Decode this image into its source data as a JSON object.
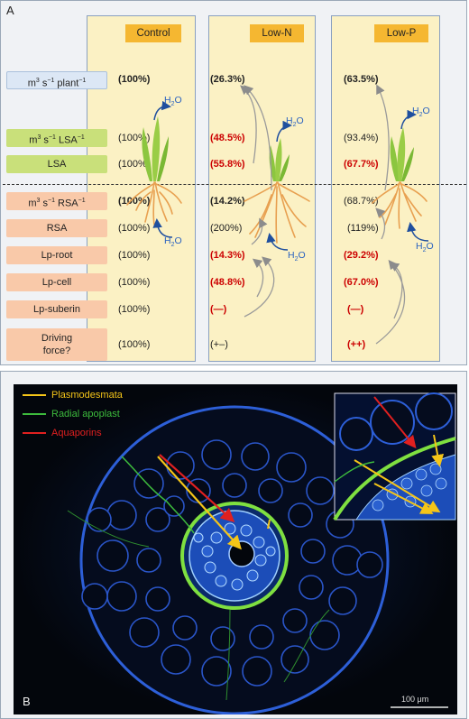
{
  "panel_a": {
    "label": "A",
    "columns": [
      {
        "title": "Control",
        "values": [
          "(100%)",
          "(100%)",
          "(100%)",
          "(100%)",
          "(100%)",
          "(100%)",
          "(100%)",
          "(100%)",
          "(100%)"
        ]
      },
      {
        "title": "Low-N",
        "values": [
          "(26.3%)",
          "(48.5%)",
          "(55.8%)",
          "(14.2%)",
          "(200%)",
          "(14.3%)",
          "(48.8%)",
          "(—)",
          "(+–)"
        ]
      },
      {
        "title": "Low-P",
        "values": [
          "(63.5%)",
          "(93.4%)",
          "(67.7%)",
          "(68.7%)",
          "(119%)",
          "(29.2%)",
          "(67.0%)",
          "(—)",
          "(++)"
        ]
      }
    ],
    "rows": [
      {
        "label_pre": "m",
        "label_sup1": "3",
        "label_mid": " s",
        "label_sup2": "−1",
        "label_post": " plant",
        "label_sup3": "−1"
      },
      {
        "label_pre": "m",
        "label_sup1": "3",
        "label_mid": " s",
        "label_sup2": "−1",
        "label_post": " LSA",
        "label_sup3": "−1"
      },
      {
        "label": "LSA"
      },
      {
        "label_pre": "m",
        "label_sup1": "3",
        "label_mid": " s",
        "label_sup2": "−1",
        "label_post": " RSA",
        "label_sup3": "−1"
      },
      {
        "label": "RSA"
      },
      {
        "label": "Lp-root"
      },
      {
        "label": "Lp-cell"
      },
      {
        "label": "Lp-suberin"
      },
      {
        "label_line1": "Driving",
        "label_line2": "force?"
      }
    ],
    "h2o": {
      "base": "H",
      "sub": "2",
      "tail": "O"
    }
  },
  "panel_b": {
    "label": "B",
    "legend": [
      {
        "text": "Plasmodesmata",
        "color": "#f5c518"
      },
      {
        "text": "Radial apoplast",
        "color": "#3dbb3d"
      },
      {
        "text": "Aquaporins",
        "color": "#e02020"
      }
    ],
    "scale_bar": "100 μm"
  },
  "colors": {
    "column_bg": "#fbf1c4",
    "header_bg": "#f5b731",
    "red_value": "#cc0000",
    "shoot": "#8cc63f",
    "root": "#e8a050",
    "water": "#2a62c0"
  }
}
